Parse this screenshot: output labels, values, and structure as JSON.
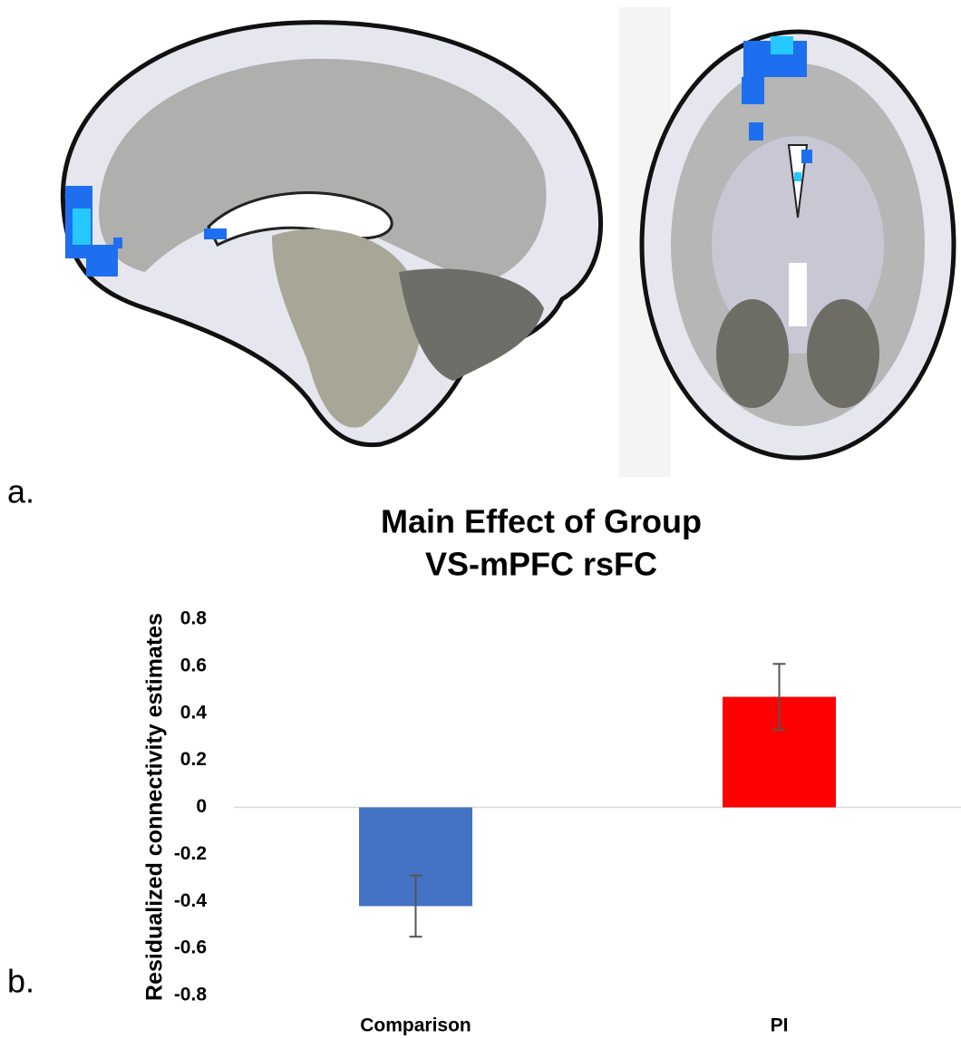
{
  "panel_labels": [
    "a.",
    "b."
  ],
  "chart_data": {
    "type": "bar",
    "title": "Main Effect of Group",
    "subtitle": "VS-mPFC rsFC",
    "y_label": "Residualized connectivity estimates",
    "categories": [
      "Comparison",
      "PI"
    ],
    "values": [
      -0.42,
      0.47
    ],
    "errors": [
      0.13,
      0.14
    ],
    "colors": [
      "#4472c4",
      "#ff0000"
    ],
    "ylim": [
      -0.8,
      0.8
    ],
    "yticks": [
      0.8,
      0.6,
      0.4,
      0.2,
      0,
      -0.2,
      -0.4,
      -0.6,
      -0.8
    ],
    "grid": false
  }
}
